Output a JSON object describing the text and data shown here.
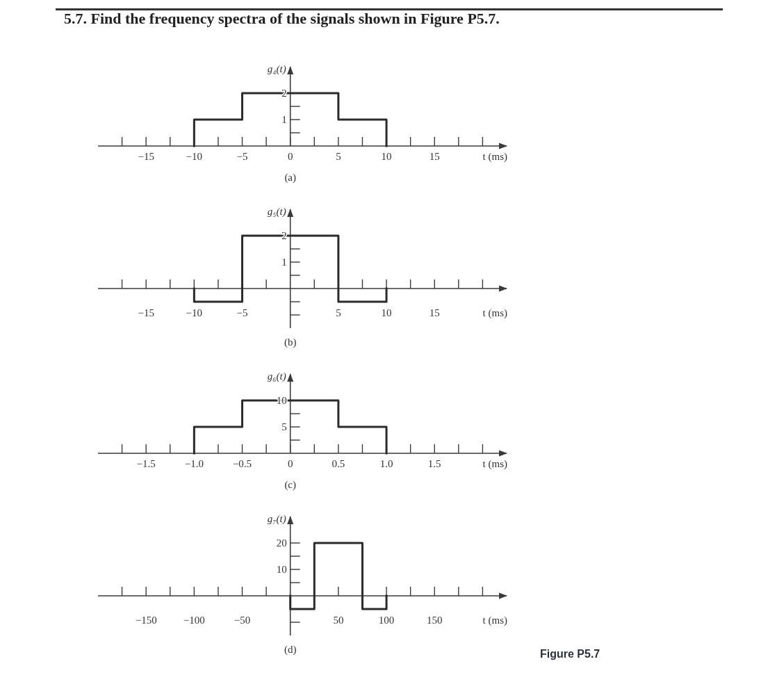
{
  "chart_data": [
    {
      "type": "step",
      "title": "5.7. Find the frequency spectra of the signals shown in Figure P5.7.",
      "ylabel": "g₄(t)",
      "xlabel": "t (ms)",
      "x": [
        -10,
        -10,
        -5,
        5,
        10
      ],
      "values": [
        0,
        1,
        2,
        1,
        0
      ],
      "color": "#2b2b2b",
      "xlim": [
        -20,
        22.5
      ],
      "ylim": [
        0,
        3
      ],
      "xticks": [
        {
          "value": -17.5,
          "label": null
        },
        {
          "value": -15,
          "label": "−15"
        },
        {
          "value": -12.5,
          "label": null
        },
        {
          "value": -10,
          "label": "−10"
        },
        {
          "value": -7.5,
          "label": null
        },
        {
          "value": -5,
          "label": "−5"
        },
        {
          "value": -2.5,
          "label": null
        },
        0,
        {
          "value": 2.5,
          "label": null
        },
        5,
        {
          "value": 7.5,
          "label": null
        },
        10,
        {
          "value": 12.5,
          "label": null
        },
        15,
        {
          "value": 17.5,
          "label": null
        },
        {
          "value": 20,
          "label": null
        }
      ],
      "yticks": [
        {
          "value": 0.5,
          "label": null
        },
        1,
        {
          "value": 1.5,
          "label": null
        },
        2
      ],
      "annotations": [
        "(a)"
      ]
    },
    {
      "type": "step",
      "ylabel": "g₅(t)",
      "xlabel": "t (ms)",
      "x": [
        -10,
        -10,
        -5,
        5,
        10
      ],
      "values": [
        0,
        -0.5,
        2,
        -0.5,
        0
      ],
      "color": "#2b2b2b",
      "xlim": [
        -20,
        22.5
      ],
      "ylim": [
        -1.5,
        3
      ],
      "xticks": [
        {
          "value": -17.5,
          "label": null
        },
        {
          "value": -15,
          "label": "−15"
        },
        {
          "value": -12.5,
          "label": null
        },
        {
          "value": -10,
          "label": "−10"
        },
        {
          "value": -7.5,
          "label": null
        },
        {
          "value": -5,
          "label": "−5"
        },
        {
          "value": -2.5,
          "label": null
        },
        {
          "value": 2.5,
          "label": null
        },
        5,
        {
          "value": 7.5,
          "label": null
        },
        10,
        {
          "value": 12.5,
          "label": null
        },
        15,
        {
          "value": 17.5,
          "label": null
        },
        {
          "value": 20,
          "label": null
        }
      ],
      "yticks": [
        {
          "value": -1,
          "label": null
        },
        {
          "value": -0.5,
          "label": null
        },
        {
          "value": 0.5,
          "label": null
        },
        1,
        {
          "value": 1.5,
          "label": null
        },
        2
      ],
      "annotations": [
        "(b)"
      ]
    },
    {
      "type": "step",
      "ylabel": "g₆(t)",
      "xlabel": "t (ms)",
      "x": [
        -1,
        -1,
        -0.5,
        0.5,
        1
      ],
      "values": [
        0,
        5,
        10,
        5,
        0
      ],
      "color": "#2b2b2b",
      "xlim": [
        -2,
        2.25
      ],
      "ylim": [
        0,
        15
      ],
      "xticks": [
        {
          "value": -1.75,
          "label": null
        },
        {
          "value": -1.5,
          "label": "−1.5"
        },
        {
          "value": -1.25,
          "label": null
        },
        {
          "value": -1,
          "label": "−1.0"
        },
        {
          "value": -0.75,
          "label": null
        },
        {
          "value": -0.5,
          "label": "−0.5"
        },
        {
          "value": -0.25,
          "label": null
        },
        0,
        {
          "value": 0.25,
          "label": null
        },
        0.5,
        {
          "value": 0.75,
          "label": null
        },
        {
          "value": 1,
          "label": "1.0"
        },
        {
          "value": 1.25,
          "label": null
        },
        1.5,
        {
          "value": 1.75,
          "label": null
        },
        {
          "value": 2,
          "label": null
        }
      ],
      "yticks": [
        {
          "value": 2.5,
          "label": null
        },
        5,
        {
          "value": 7.5,
          "label": null
        },
        10
      ],
      "annotations": [
        "(c)"
      ]
    },
    {
      "type": "step",
      "ylabel": "g₇(t)",
      "xlabel": "t (ms)",
      "x": [
        0,
        0,
        25,
        75,
        100
      ],
      "values": [
        0,
        -5,
        20,
        -5,
        0
      ],
      "color": "#2b2b2b",
      "xlim": [
        -200,
        225
      ],
      "ylim": [
        -15,
        30
      ],
      "xticks": [
        {
          "value": -175,
          "label": null
        },
        {
          "value": -150,
          "label": "−150"
        },
        {
          "value": -125,
          "label": null
        },
        {
          "value": -100,
          "label": "−100"
        },
        {
          "value": -75,
          "label": null
        },
        {
          "value": -50,
          "label": "−50"
        },
        {
          "value": -25,
          "label": null
        },
        {
          "value": 25,
          "label": null
        },
        50,
        {
          "value": 75,
          "label": null
        },
        100,
        {
          "value": 125,
          "label": null
        },
        150,
        {
          "value": 175,
          "label": null
        },
        {
          "value": 200,
          "label": null
        }
      ],
      "yticks": [
        {
          "value": -10,
          "label": null
        },
        {
          "value": 5,
          "label": null
        },
        10,
        {
          "value": 15,
          "label": null
        },
        20
      ],
      "annotations": [
        "(d)",
        "Figure P5.7"
      ]
    }
  ]
}
